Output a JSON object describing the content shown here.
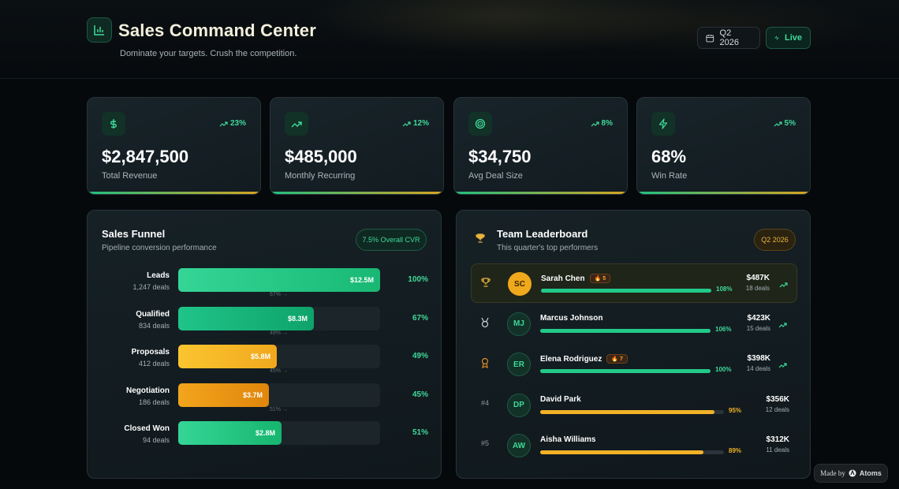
{
  "header": {
    "title": "Sales Command Center",
    "subtitle": "Dominate your targets. Crush the competition.",
    "period_button": "Q2 2026",
    "live_button": "Live"
  },
  "kpis": [
    {
      "icon": "dollar-icon",
      "value": "$2,847,500",
      "label": "Total Revenue",
      "trend": "23%"
    },
    {
      "icon": "trending-up-icon",
      "value": "$485,000",
      "label": "Monthly Recurring",
      "trend": "12%"
    },
    {
      "icon": "target-icon",
      "value": "$34,750",
      "label": "Avg Deal Size",
      "trend": "8%"
    },
    {
      "icon": "zap-icon",
      "value": "68%",
      "label": "Win Rate",
      "trend": "5%"
    }
  ],
  "funnel": {
    "title": "Sales Funnel",
    "subtitle": "Pipeline conversion performance",
    "badge": "7.5% Overall CVR",
    "stages": [
      {
        "name": "Leads",
        "deals": "1,247 deals",
        "value": "$12.5M",
        "fill": 1.0,
        "pct": "100%",
        "conv": "67% →"
      },
      {
        "name": "Qualified",
        "deals": "834 deals",
        "value": "$8.3M",
        "fill": 0.67,
        "pct": "67%",
        "conv": "49% →"
      },
      {
        "name": "Proposals",
        "deals": "412 deals",
        "value": "$5.8M",
        "fill": 0.49,
        "pct": "49%",
        "conv": "45% →"
      },
      {
        "name": "Negotiation",
        "deals": "186 deals",
        "value": "$3.7M",
        "fill": 0.45,
        "pct": "45%",
        "conv": "51% →"
      },
      {
        "name": "Closed Won",
        "deals": "94 deals",
        "value": "$2.8M",
        "fill": 0.51,
        "pct": "51%",
        "conv": ""
      }
    ],
    "colors": {
      "green": "#22c98a",
      "gold": "#f2b227",
      "orange": "#e88f10"
    }
  },
  "leaderboard": {
    "title": "Team Leaderboard",
    "subtitle": "This quarter's top performers",
    "badge": "Q2 2026",
    "members": [
      {
        "rank": "",
        "rank_icon": "trophy-icon",
        "initials": "SC",
        "name": "Sarah Chen",
        "streak": "5",
        "amount": "$487K",
        "deals": "18 deals",
        "quota": "108%",
        "fill": 1.0,
        "color": "green"
      },
      {
        "rank": "",
        "rank_icon": "medal-icon",
        "initials": "MJ",
        "name": "Marcus Johnson",
        "streak": "",
        "amount": "$423K",
        "deals": "15 deals",
        "quota": "106%",
        "fill": 1.0,
        "color": "green"
      },
      {
        "rank": "",
        "rank_icon": "award-icon",
        "initials": "ER",
        "name": "Elena Rodriguez",
        "streak": "7",
        "amount": "$398K",
        "deals": "14 deals",
        "quota": "100%",
        "fill": 1.0,
        "color": "green"
      },
      {
        "rank": "#4",
        "rank_icon": "",
        "initials": "DP",
        "name": "David Park",
        "streak": "",
        "amount": "$356K",
        "deals": "12 deals",
        "quota": "95%",
        "fill": 0.95,
        "color": "gold"
      },
      {
        "rank": "#5",
        "rank_icon": "",
        "initials": "AW",
        "name": "Aisha Williams",
        "streak": "",
        "amount": "$312K",
        "deals": "11 deals",
        "quota": "89%",
        "fill": 0.89,
        "color": "gold"
      }
    ]
  },
  "footer": {
    "made_by": "Made by",
    "brand": "Atoms"
  }
}
